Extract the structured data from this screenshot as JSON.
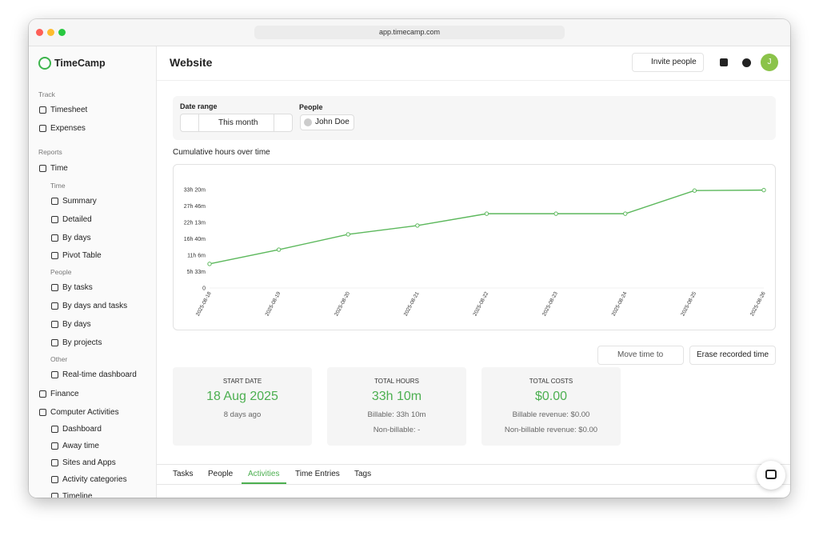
{
  "browser": {
    "url": "app.timecamp.com"
  },
  "sidebar": {
    "logo": "TimeCamp",
    "track": {
      "heading": "Track",
      "items": [
        "Timesheet",
        "Expenses"
      ]
    },
    "reports": {
      "heading": "Reports",
      "time": {
        "label": "Time",
        "groups": [
          {
            "heading": "Time",
            "items": [
              "Summary",
              "Detailed",
              "By days",
              "Pivot Table"
            ]
          },
          {
            "heading": "People",
            "items": [
              "By tasks",
              "By days and tasks",
              "By days",
              "By projects"
            ]
          },
          {
            "heading": "Other",
            "items": [
              "Real-time dashboard"
            ]
          }
        ]
      },
      "finance": "Finance",
      "computer_activities": {
        "label": "Computer Activities",
        "items": [
          "Dashboard",
          "Away time",
          "Sites and Apps",
          "Activity categories",
          "Timeline"
        ]
      }
    }
  },
  "header": {
    "title": "Website",
    "invite": "Invite people",
    "avatar": "J"
  },
  "filters": {
    "date_range_label": "Date range",
    "date_value": "This month",
    "people_label": "People",
    "person": "John Doe"
  },
  "chart_data": {
    "type": "line",
    "title": "Cumulative hours over time",
    "categories": [
      "2025-08-18",
      "2025-08-19",
      "2025-08-20",
      "2025-08-21",
      "2025-08-22",
      "2025-08-23",
      "2025-08-24",
      "2025-08-25",
      "2025-08-26"
    ],
    "series": [
      {
        "name": "Cumulative hours",
        "color": "#5cb85c",
        "values": [
          490,
          780,
          1090,
          1270,
          1510,
          1510,
          1510,
          1980,
          1990
        ]
      }
    ],
    "ylim": [
      0,
      2000
    ],
    "yticks": [
      0,
      {
        "value": 333,
        "label": "5h 33m"
      },
      {
        "value": 666,
        "label": "11h 6m"
      },
      {
        "value": 1000,
        "label": "16h 40m"
      },
      {
        "value": 1333,
        "label": "22h 13m"
      },
      {
        "value": 1666,
        "label": "27h 46m"
      },
      {
        "value": 2000,
        "label": "33h 20m"
      }
    ],
    "grid": false
  },
  "actions": {
    "move": "Move time to",
    "erase": "Erase recorded time"
  },
  "cards": [
    {
      "label": "START DATE",
      "value": "18 Aug 2025",
      "details": [
        "8 days ago"
      ]
    },
    {
      "label": "TOTAL HOURS",
      "value": "33h 10m",
      "details": [
        "Billable: 33h 10m",
        "Non-billable: -"
      ]
    },
    {
      "label": "TOTAL COSTS",
      "value": "$0.00",
      "details": [
        "Billable revenue: $0.00",
        "Non-billable revenue: $0.00"
      ]
    }
  ],
  "tabs": [
    "Tasks",
    "People",
    "Activities",
    "Time Entries",
    "Tags"
  ]
}
